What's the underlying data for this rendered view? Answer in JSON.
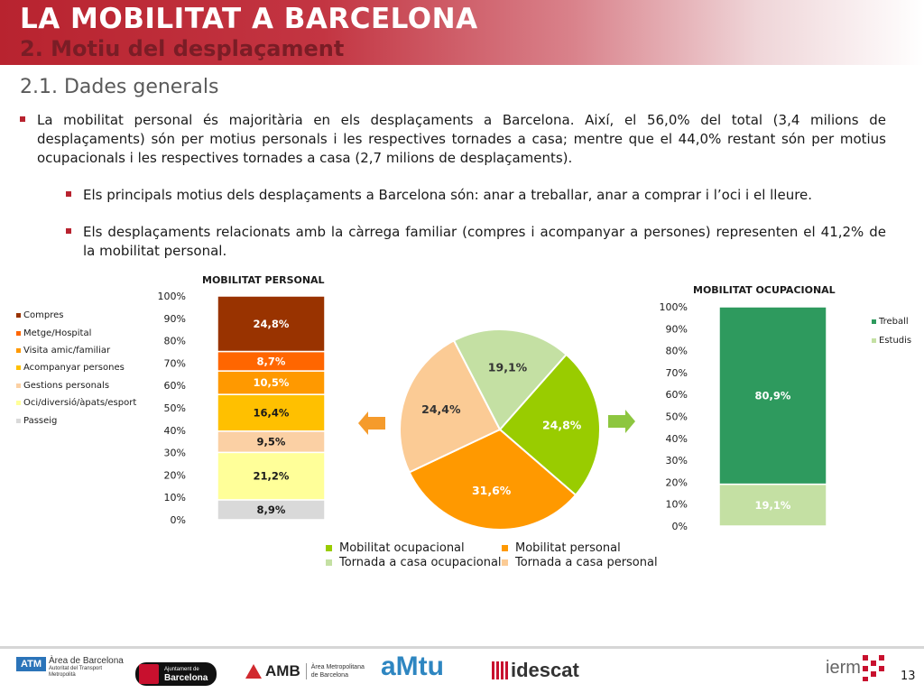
{
  "header": {
    "title": "LA MOBILITAT A BARCELONA",
    "subtitle": "2. Motiu del desplaçament"
  },
  "section_title": "2.1. Dades generals",
  "bullets": [
    "La mobilitat personal és majoritària en els desplaçaments a Barcelona. Així, el 56,0% del total (3,4 milions de desplaçaments) són per motius personals i les respectives tornades a casa; mentre que el 44,0% restant són per motius ocupacionals i les respectives tornades a casa (2,7 milions de desplaçaments).",
    "Els principals motius dels desplaçaments a Barcelona són: anar a treballar, anar a comprar i l’oci i el lleure.",
    "Els desplaçaments relacionats amb la càrrega familiar (compres i acompanyar a persones) representen el 41,2% de la mobilitat personal."
  ],
  "chart_data": [
    {
      "type": "bar",
      "stacked": true,
      "title": "MOBILITAT PERSONAL",
      "ylim": [
        0,
        100
      ],
      "yticks": [
        "0%",
        "10%",
        "20%",
        "30%",
        "40%",
        "50%",
        "60%",
        "70%",
        "80%",
        "90%",
        "100%"
      ],
      "legend_position": "left",
      "series": [
        {
          "name": "Passeig",
          "value": 8.9,
          "label": "8,9%",
          "color": "#d9d9d9"
        },
        {
          "name": "Oci/diversió/àpats/esport",
          "value": 21.2,
          "label": "21,2%",
          "color": "#ffff99"
        },
        {
          "name": "Gestions personals",
          "value": 9.5,
          "label": "9,5%",
          "color": "#fbd0a4"
        },
        {
          "name": "Acompanyar persones",
          "value": 16.4,
          "label": "16,4%",
          "color": "#ffc000"
        },
        {
          "name": "Visita amic/familiar",
          "value": 10.5,
          "label": "10,5%",
          "color": "#ff9900"
        },
        {
          "name": "Metge/Hospital",
          "value": 8.7,
          "label": "8,7%",
          "color": "#ff6600"
        },
        {
          "name": "Compres",
          "value": 24.8,
          "label": "24,8%",
          "color": "#993300"
        }
      ],
      "legend_order": [
        "Compres",
        "Metge/Hospital",
        "Visita amic/familiar",
        "Acompanyar persones",
        "Gestions personals",
        "Oci/diversió/àpats/esport",
        "Passeig"
      ]
    },
    {
      "type": "pie",
      "slices": [
        {
          "name": "Mobilitat ocupacional",
          "value": 24.8,
          "label": "24,8%",
          "color": "#99cc00"
        },
        {
          "name": "Mobilitat personal",
          "value": 31.6,
          "label": "31,6%",
          "color": "#ff9900"
        },
        {
          "name": "Tornada a casa personal",
          "value": 24.4,
          "label": "24,4%",
          "color": "#fbcb95"
        },
        {
          "name": "Tornada a casa ocupacional",
          "value": 19.1,
          "label": "19,1%",
          "color": "#c4e0a3"
        }
      ],
      "legend": [
        {
          "name": "Mobilitat ocupacional",
          "color": "#99cc00"
        },
        {
          "name": "Mobilitat personal",
          "color": "#ff9900"
        },
        {
          "name": "Tornada a casa ocupacional",
          "color": "#c4e0a3"
        },
        {
          "name": "Tornada a casa personal",
          "color": "#fbcb95"
        }
      ],
      "legend_position": "bottom"
    },
    {
      "type": "bar",
      "stacked": true,
      "title": "MOBILITAT OCUPACIONAL",
      "ylim": [
        0,
        100
      ],
      "yticks": [
        "0%",
        "10%",
        "20%",
        "30%",
        "40%",
        "50%",
        "60%",
        "70%",
        "80%",
        "90%",
        "100%"
      ],
      "legend_position": "right",
      "series": [
        {
          "name": "Estudis",
          "value": 19.1,
          "label": "19,1%",
          "color": "#c4e0a3"
        },
        {
          "name": "Treball",
          "value": 80.9,
          "label": "80,9%",
          "color": "#2e9a5e"
        }
      ],
      "legend_order": [
        "Treball",
        "Estudis"
      ]
    }
  ],
  "arrows": {
    "left_color": "#f59b2c",
    "right_color": "#8dc63f"
  },
  "footer": {
    "logos": [
      {
        "name": "ATM",
        "text": "ATM",
        "text2": "Àrea de Barcelona",
        "text3": "Autoritat del Transport Metropolità"
      },
      {
        "name": "Ajuntament",
        "text": "Ajuntament de",
        "text2": "Barcelona"
      },
      {
        "name": "AMB",
        "text": "AMB",
        "text2": "Àrea Metropolitana",
        "text3": "de Barcelona"
      },
      {
        "name": "AMTU",
        "text": "aMtu"
      },
      {
        "name": "idescat",
        "text": "idescat"
      },
      {
        "name": "iermb",
        "text": "ierm"
      }
    ],
    "page_number": "13"
  }
}
